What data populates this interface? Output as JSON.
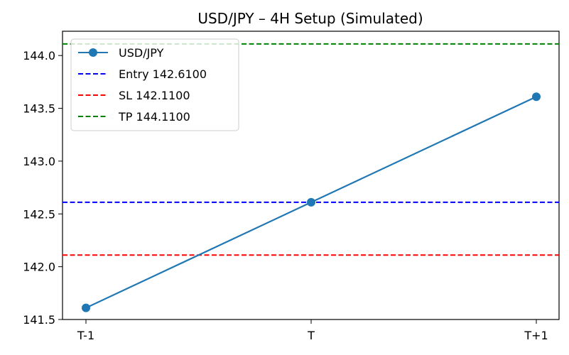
{
  "chart_data": {
    "type": "line",
    "title": "USD/JPY – 4H Setup (Simulated)",
    "xlabel": "",
    "ylabel": "",
    "categories": [
      "T-1",
      "T",
      "T+1"
    ],
    "series": [
      {
        "name": "USD/JPY",
        "values": [
          141.61,
          142.61,
          143.61
        ],
        "color": "#1f77b4",
        "marker": "circle"
      }
    ],
    "hlines": [
      {
        "label": "Entry 142.6100",
        "value": 142.61,
        "color": "#0000ff",
        "style": "dashed"
      },
      {
        "label": "SL 142.1100",
        "value": 142.11,
        "color": "#ff0000",
        "style": "dashed"
      },
      {
        "label": "TP 144.1100",
        "value": 144.11,
        "color": "#008000",
        "style": "dashed"
      }
    ],
    "ylim": [
      141.5,
      144.23
    ],
    "yticks": [
      "141.5",
      "142.0",
      "142.5",
      "143.0",
      "143.5",
      "144.0"
    ],
    "grid": false,
    "legend_position": "upper-left"
  }
}
